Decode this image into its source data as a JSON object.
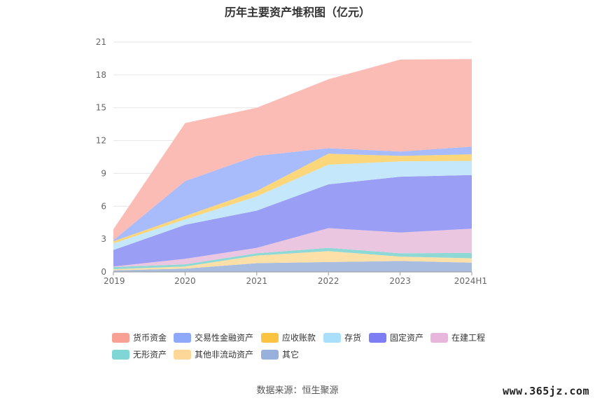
{
  "title": "历年主要资产堆积图（亿元）",
  "source_text": "数据来源：恒生聚源",
  "watermark": "www.365jz.com",
  "chart_data": {
    "type": "area",
    "stacked": true,
    "title": "历年主要资产堆积图（亿元）",
    "x": [
      "2019",
      "2020",
      "2021",
      "2022",
      "2023",
      "2024H1"
    ],
    "ylim": [
      0,
      21
    ],
    "yticks": [
      "0",
      "3",
      "6",
      "9",
      "12",
      "15",
      "18",
      "21"
    ],
    "grid": true,
    "legend_position": "bottom",
    "series": [
      {
        "name": "其它",
        "color": "#a8bde0",
        "values": [
          0.15,
          0.3,
          0.8,
          0.9,
          1.0,
          0.85
        ]
      },
      {
        "name": "其他非流动资产",
        "color": "#fde0a8",
        "values": [
          0.1,
          0.2,
          0.7,
          1.0,
          0.4,
          0.4
        ]
      },
      {
        "name": "无形资产",
        "color": "#8ed8d6",
        "values": [
          0.2,
          0.2,
          0.2,
          0.3,
          0.3,
          0.5
        ]
      },
      {
        "name": "在建工程",
        "color": "#eac6e0",
        "values": [
          0.05,
          0.5,
          0.5,
          1.8,
          1.9,
          2.2
        ]
      },
      {
        "name": "固定资产",
        "color": "#9b9ef5",
        "values": [
          1.5,
          3.1,
          3.4,
          4.0,
          5.1,
          4.9
        ]
      },
      {
        "name": "存货",
        "color": "#c5e7fb",
        "values": [
          0.6,
          0.5,
          1.3,
          1.8,
          1.4,
          1.3
        ]
      },
      {
        "name": "应收账款",
        "color": "#fbd67a",
        "values": [
          0.2,
          0.3,
          0.5,
          1.0,
          0.5,
          0.6
        ]
      },
      {
        "name": "交易性金融资产",
        "color": "#a8bbfb",
        "values": [
          0.1,
          3.2,
          3.2,
          0.5,
          0.4,
          0.7
        ]
      },
      {
        "name": "货币资金",
        "color": "#fbbcb6",
        "values": [
          1.0,
          5.3,
          4.4,
          6.3,
          8.4,
          8.0
        ]
      }
    ],
    "legend": [
      {
        "name": "货币资金",
        "color": "#f9a094"
      },
      {
        "name": "交易性金融资产",
        "color": "#8ea9fa"
      },
      {
        "name": "应收账款",
        "color": "#fbc342"
      },
      {
        "name": "存货",
        "color": "#a9dffb"
      },
      {
        "name": "固定资产",
        "color": "#7d7ef4"
      },
      {
        "name": "在建工程",
        "color": "#e8b6dc"
      },
      {
        "name": "无形资产",
        "color": "#80d6d4"
      },
      {
        "name": "其他非流动资产",
        "color": "#fdd797"
      },
      {
        "name": "其它",
        "color": "#97b1dc"
      }
    ]
  }
}
